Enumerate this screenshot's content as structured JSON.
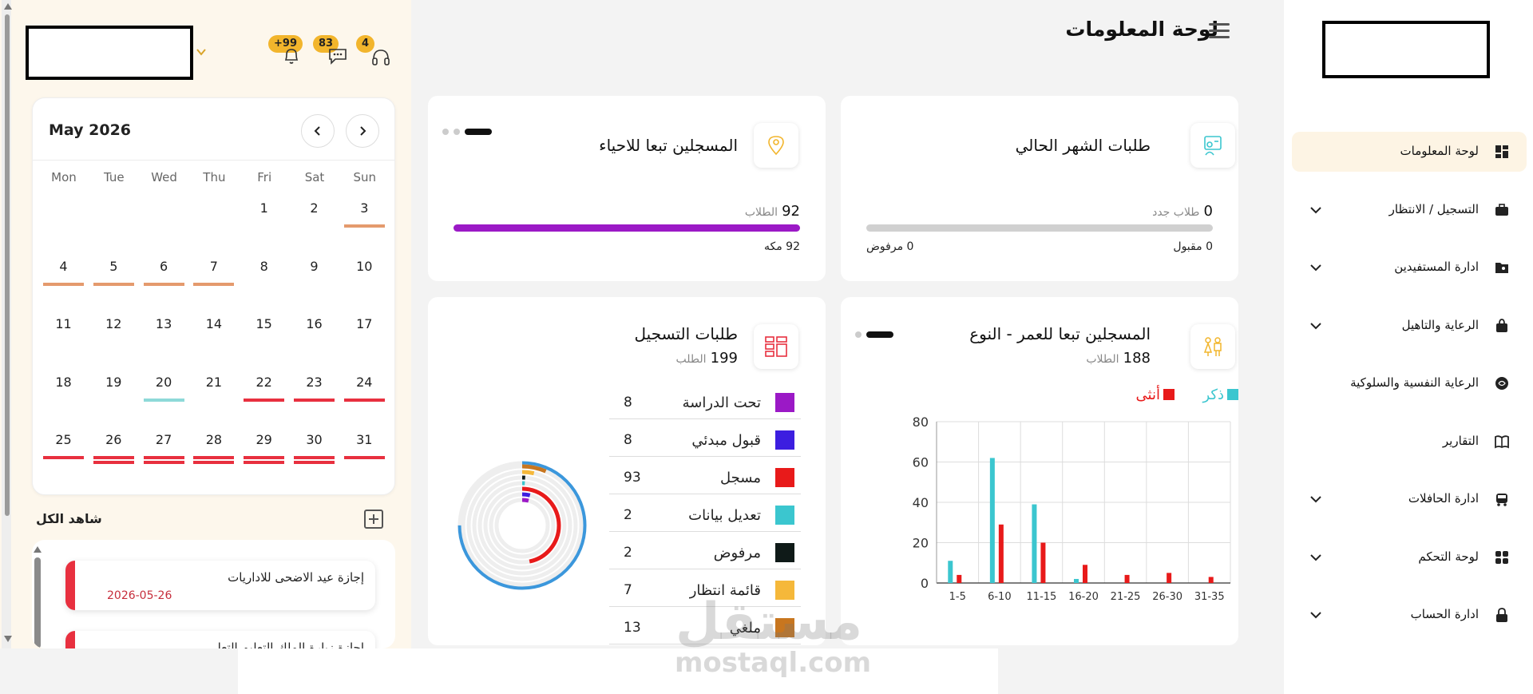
{
  "header": {
    "title": "لوحة المعلومات"
  },
  "notifications": [
    {
      "badge": "+99",
      "icon": "bell-icon"
    },
    {
      "badge": "83",
      "icon": "chat-icon"
    },
    {
      "badge": "4",
      "icon": "headset-icon"
    }
  ],
  "calendar": {
    "month": "May 2026",
    "weekdays": [
      "Mon",
      "Tue",
      "Wed",
      "Thu",
      "Fri",
      "Sat",
      "Sun"
    ],
    "weeks": [
      [
        null,
        null,
        null,
        null,
        "1",
        "2",
        "3"
      ],
      [
        "4",
        "5",
        "6",
        "7",
        "8",
        "9",
        "10"
      ],
      [
        "11",
        "12",
        "13",
        "14",
        "15",
        "16",
        "17"
      ],
      [
        "18",
        "19",
        "20",
        "21",
        "22",
        "23",
        "24"
      ],
      [
        "25",
        "26",
        "27",
        "28",
        "29",
        "30",
        "31"
      ]
    ],
    "markers": {
      "3": [
        "#e49a6d"
      ],
      "4": [
        "#e49a6d"
      ],
      "5": [
        "#e49a6d"
      ],
      "6": [
        "#e49a6d"
      ],
      "7": [
        "#e49a6d"
      ],
      "20": [
        "#8ed9d8"
      ],
      "22": [
        "#e8303f"
      ],
      "23": [
        "#e8303f"
      ],
      "24": [
        "#e8303f"
      ],
      "25": [
        "#e8303f"
      ],
      "26": [
        "#e8303f",
        "#e8303f"
      ],
      "27": [
        "#e8303f",
        "#e8303f"
      ],
      "28": [
        "#e8303f",
        "#e8303f"
      ],
      "29": [
        "#e8303f",
        "#e8303f"
      ],
      "30": [
        "#e8303f",
        "#e8303f"
      ],
      "31": [
        "#e8303f"
      ]
    }
  },
  "events": {
    "see_all": "شاهد الكل",
    "items": [
      {
        "title": "إجازة عيد الاضحى للاداريات",
        "date": "2026-05-26"
      },
      {
        "title": "اجازة زيارة الملك التعليم التعل",
        "date": ""
      }
    ]
  },
  "cards": {
    "monthly_requests": {
      "title": "طلبات الشهر الحالي",
      "value": "0",
      "unit": "طلاب جدد",
      "accepted": "0 مقبول",
      "rejected": "0 مرفوض",
      "progress": 0
    },
    "by_neighborhood": {
      "title": "المسجلين تبعا للاحياء",
      "value": "92",
      "unit": "الطلاب",
      "detail": "92 مكه",
      "progress": 1.0,
      "bar_color": "#9b19c6"
    },
    "age_gender": {
      "title": "المسجلين تبعا للعمر - النوع",
      "value": "188",
      "unit": "الطلاب"
    },
    "registration": {
      "title": "طلبات التسجيل",
      "value": "199",
      "unit": "الطلب",
      "rows": [
        {
          "label": "تحت الدراسة",
          "value": "8",
          "color": "#9b19c6"
        },
        {
          "label": "قبول مبدئي",
          "value": "8",
          "color": "#3c1ee0"
        },
        {
          "label": "مسجل",
          "value": "93",
          "color": "#e81a1a"
        },
        {
          "label": "تعديل بيانات",
          "value": "2",
          "color": "#3bc6cf"
        },
        {
          "label": "مرفوض",
          "value": "2",
          "color": "#0f1a18"
        },
        {
          "label": "قائمة انتظار",
          "value": "7",
          "color": "#f5b83a"
        },
        {
          "label": "ملغي",
          "value": "13",
          "color": "#c8761f"
        }
      ],
      "ring_total_color": "#3b97dc"
    }
  },
  "chart_data": {
    "type": "bar",
    "categories": [
      "1-5",
      "6-10",
      "11-15",
      "16-20",
      "21-25",
      "26-30",
      "31-35"
    ],
    "series": [
      {
        "name": "ذكر",
        "color": "#3bc6cf",
        "values": [
          11,
          62,
          39,
          2,
          0,
          0,
          0
        ]
      },
      {
        "name": "أنثى",
        "color": "#e81a1a",
        "values": [
          4,
          29,
          20,
          9,
          4,
          5,
          3
        ]
      }
    ],
    "yticks": [
      "0",
      "20",
      "40",
      "60",
      "80"
    ],
    "ylim": [
      0,
      80
    ],
    "legend_position": "top-right",
    "grid": true
  },
  "sidebar": {
    "items": [
      {
        "label": "لوحة المعلومات",
        "icon": "dashboard-icon",
        "active": true,
        "expand": false
      },
      {
        "label": "التسجيل / الانتظار",
        "icon": "briefcase-icon",
        "active": false,
        "expand": true
      },
      {
        "label": "ادارة المستفيدين",
        "icon": "folder-user-icon",
        "active": false,
        "expand": true
      },
      {
        "label": "الرعاية والتاهيل",
        "icon": "bag-icon",
        "active": false,
        "expand": true
      },
      {
        "label": "الرعاية النفسية والسلوكية",
        "icon": "brain-icon",
        "active": false,
        "expand": false
      },
      {
        "label": "التقارير",
        "icon": "book-icon",
        "active": false,
        "expand": false
      },
      {
        "label": "ادارة الحافلات",
        "icon": "bus-icon",
        "active": false,
        "expand": true
      },
      {
        "label": "لوحة التحكم",
        "icon": "grid-icon",
        "active": false,
        "expand": true
      },
      {
        "label": "ادارة الحساب",
        "icon": "lock-icon",
        "active": false,
        "expand": true
      }
    ]
  },
  "watermark": {
    "arabic": "مستقل",
    "latin": "mostaql.com"
  }
}
